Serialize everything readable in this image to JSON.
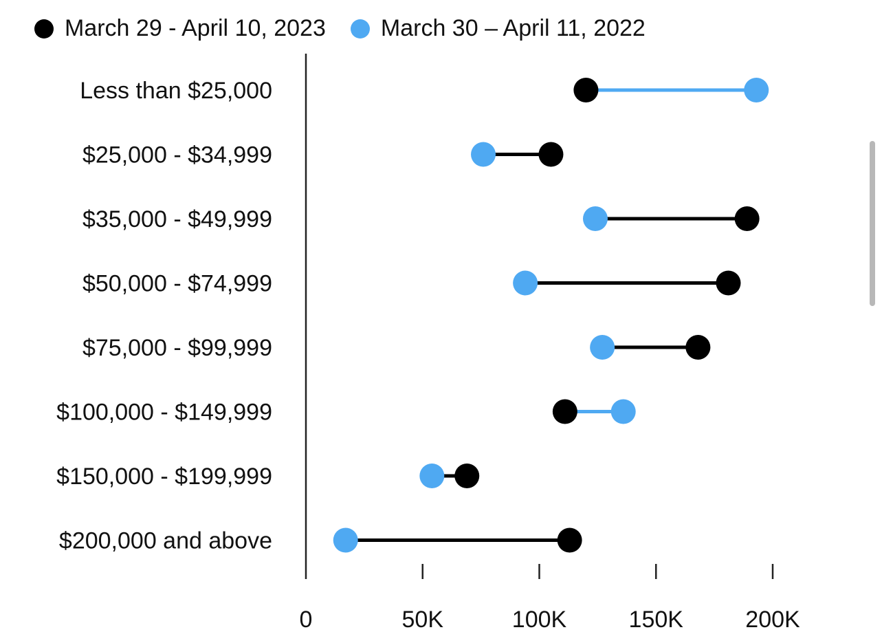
{
  "chart_data": {
    "type": "dumbbell",
    "categories": [
      "Less than $25,000",
      "$25,000 - $34,999",
      "$35,000 - $49,999",
      "$50,000 - $74,999",
      "$75,000 - $99,999",
      "$100,000 - $149,999",
      "$150,000 - $199,999",
      "$200,000 and above"
    ],
    "series": [
      {
        "name": "March 29 - April 10, 2023",
        "color": "#000000",
        "values": [
          120000,
          105000,
          189000,
          181000,
          168000,
          111000,
          69000,
          113000
        ]
      },
      {
        "name": "March 30 – April 11, 2022",
        "color": "#4fa9f2",
        "values": [
          193000,
          76000,
          124000,
          94000,
          127000,
          136000,
          54000,
          17000
        ]
      }
    ],
    "x_ticks": [
      0,
      50000,
      100000,
      150000,
      200000
    ],
    "x_tick_labels": [
      "0",
      "50K",
      "100K",
      "150K",
      "200K"
    ],
    "xlim": [
      0,
      200000
    ],
    "legend_position": "top-left",
    "connector_color_rule": "color of the series with the larger value"
  }
}
